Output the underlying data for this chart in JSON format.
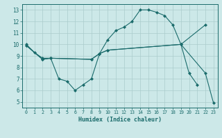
{
  "title": "",
  "xlabel": "Humidex (Indice chaleur)",
  "bg_color": "#cce8e8",
  "grid_color": "#aacccc",
  "line_color": "#1a6b6b",
  "xlim": [
    -0.5,
    23.5
  ],
  "ylim": [
    4.5,
    13.5
  ],
  "xticks": [
    0,
    1,
    2,
    3,
    4,
    5,
    6,
    7,
    8,
    9,
    10,
    11,
    12,
    13,
    14,
    15,
    16,
    17,
    18,
    19,
    20,
    21,
    22,
    23
  ],
  "yticks": [
    5,
    6,
    7,
    8,
    9,
    10,
    11,
    12,
    13
  ],
  "lx1": [
    0,
    1,
    2,
    3,
    4,
    5,
    6,
    7,
    8,
    9,
    10,
    11,
    12,
    13,
    14,
    15,
    16,
    17,
    18,
    19,
    20,
    21
  ],
  "ly1": [
    10.0,
    9.3,
    8.8,
    8.8,
    7.0,
    6.8,
    6.0,
    6.5,
    7.0,
    9.2,
    10.4,
    11.2,
    11.5,
    12.0,
    13.0,
    13.0,
    12.8,
    12.5,
    11.7,
    10.0,
    7.5,
    6.5
  ],
  "lx2": [
    0,
    2,
    3,
    8,
    9,
    10,
    19,
    22
  ],
  "ly2": [
    9.9,
    8.7,
    8.8,
    8.7,
    9.2,
    9.5,
    10.0,
    11.7
  ],
  "lx3": [
    0,
    2,
    3,
    8,
    9,
    10,
    19,
    22,
    23
  ],
  "ly3": [
    9.9,
    8.7,
    8.8,
    8.7,
    9.2,
    9.5,
    10.0,
    7.5,
    4.9
  ]
}
